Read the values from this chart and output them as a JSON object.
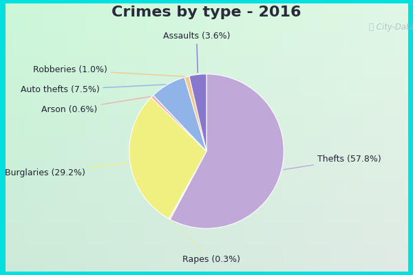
{
  "title": "Crimes by type - 2016",
  "labels": [
    "Thefts",
    "Burglaries",
    "Assaults",
    "Auto thefts",
    "Robberies",
    "Rapes",
    "Arson"
  ],
  "values": [
    57.8,
    29.2,
    3.6,
    7.5,
    1.0,
    0.3,
    0.6
  ],
  "colors": [
    "#c0a8d8",
    "#f0f080",
    "#8878cc",
    "#90b4e8",
    "#f0c890",
    "#e8e8b0",
    "#f0b0b0"
  ],
  "bg_color": "#c8ede0",
  "border_color": "#00e0e0",
  "border_width": 8,
  "title_fontsize": 16,
  "label_fontsize": 9,
  "watermark": "ⓘ City-Data.com",
  "title_color": "#2a2a3a"
}
